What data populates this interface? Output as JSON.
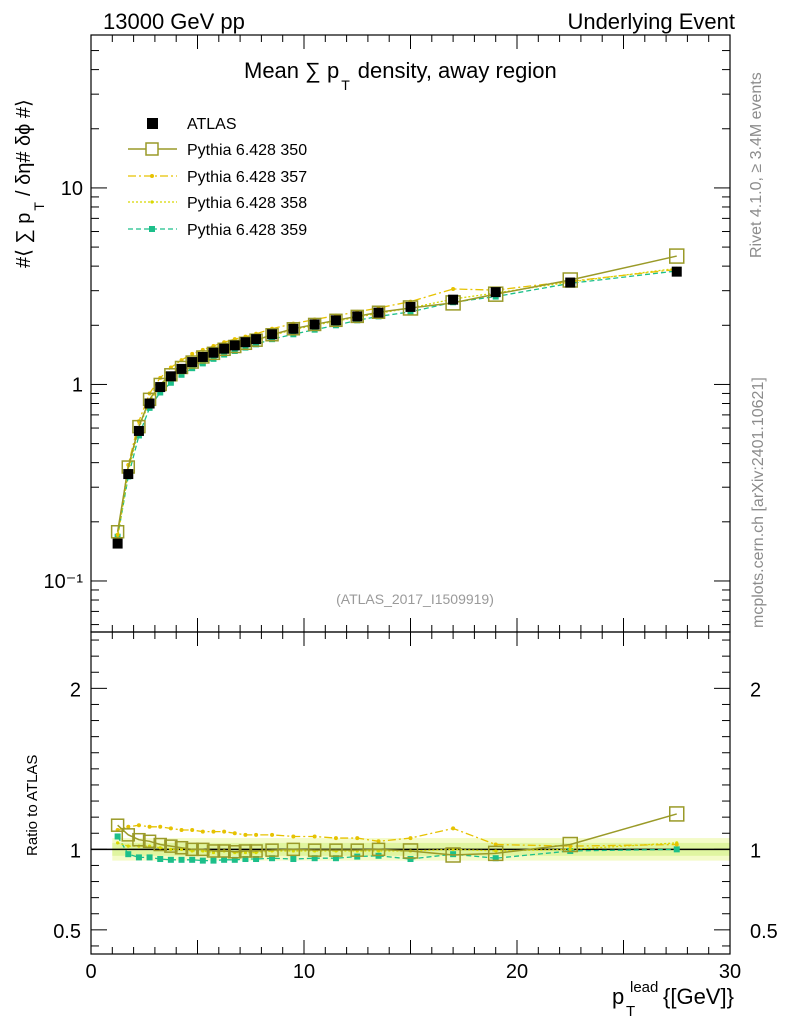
{
  "header": {
    "left": "13000 GeV pp",
    "right": "Underlying Event"
  },
  "side_labels": {
    "rivet": "Rivet 4.1.0, ≥ 3.4M events",
    "source": "mcplots.cern.ch [arXiv:2401.10621]"
  },
  "analysis_ref": "(ATLAS_2017_I1509919)",
  "colors": {
    "atlas": "#000000",
    "p350": "#9a9a28",
    "p357": "#e6c200",
    "p358": "#d8d800",
    "p359": "#1cbf8a",
    "band_inner": "#e0f5a0",
    "band_outer": "#f4fbc8"
  },
  "chart_data": [
    {
      "type": "scatter",
      "panel": "main",
      "title": "Mean ∑ p",
      "title_sub": "T",
      "title_rest": "density, away region",
      "ylabel": "#⟨ ∑ p",
      "ylabel_sub": "T",
      "ylabel_rest": "/ δη# δϕ #⟩",
      "yscale": "log",
      "ylim": [
        0.055,
        60
      ],
      "xlim": [
        0,
        30
      ],
      "yticks": [
        0.1,
        1,
        10
      ],
      "ytick_labels": [
        "10⁻¹",
        "1",
        "10"
      ],
      "x": [
        1.25,
        1.75,
        2.25,
        2.75,
        3.25,
        3.75,
        4.25,
        4.75,
        5.25,
        5.75,
        6.25,
        6.75,
        7.25,
        7.75,
        8.5,
        9.5,
        10.5,
        11.5,
        12.5,
        13.5,
        15,
        17,
        19,
        22.5,
        27.5
      ],
      "series": [
        {
          "name": "ATLAS",
          "key": "atlas",
          "style": "data",
          "values": [
            0.155,
            0.35,
            0.58,
            0.8,
            0.97,
            1.1,
            1.2,
            1.3,
            1.38,
            1.45,
            1.52,
            1.58,
            1.64,
            1.7,
            1.8,
            1.92,
            2.02,
            2.12,
            2.22,
            2.32,
            2.48,
            2.7,
            2.95,
            3.3,
            3.75
          ]
        },
        {
          "name": "Pythia 6.428 350",
          "key": "p350",
          "style": "open-square-solid",
          "values": [
            0.178,
            0.38,
            0.61,
            0.84,
            1.0,
            1.12,
            1.22,
            1.3,
            1.38,
            1.44,
            1.51,
            1.56,
            1.62,
            1.68,
            1.79,
            1.92,
            2.02,
            2.12,
            2.22,
            2.33,
            2.45,
            2.6,
            2.88,
            3.4,
            4.5
          ]
        },
        {
          "name": "Pythia 6.428 357",
          "key": "p357",
          "style": "dashdot",
          "values": [
            0.172,
            0.39,
            0.65,
            0.9,
            1.08,
            1.22,
            1.33,
            1.43,
            1.5,
            1.57,
            1.64,
            1.7,
            1.75,
            1.81,
            1.92,
            2.04,
            2.14,
            2.24,
            2.34,
            2.45,
            2.64,
            3.06,
            3.02,
            3.35,
            3.85
          ]
        },
        {
          "name": "Pythia 6.428 358",
          "key": "p358",
          "style": "dotted",
          "values": [
            0.165,
            0.36,
            0.6,
            0.82,
            0.98,
            1.1,
            1.2,
            1.28,
            1.36,
            1.42,
            1.5,
            1.55,
            1.61,
            1.67,
            1.78,
            1.9,
            2.0,
            2.1,
            2.2,
            2.3,
            2.45,
            2.72,
            2.92,
            3.32,
            3.9
          ]
        },
        {
          "name": "Pythia 6.428 359",
          "key": "p359",
          "style": "dashed-filled",
          "values": [
            0.168,
            0.34,
            0.55,
            0.76,
            0.91,
            1.02,
            1.12,
            1.21,
            1.28,
            1.35,
            1.42,
            1.48,
            1.54,
            1.6,
            1.7,
            1.8,
            1.9,
            2.0,
            2.12,
            2.22,
            2.34,
            2.62,
            2.8,
            3.27,
            3.78
          ]
        }
      ],
      "legend": "top-left"
    },
    {
      "type": "scatter",
      "panel": "ratio",
      "ylabel": "Ratio to ATLAS",
      "xlabel": "p",
      "xlabel_sub": "T",
      "xlabel_sup": "lead",
      "xlabel_rest": "{[GeV]}",
      "ylim": [
        0.35,
        2.35
      ],
      "xlim": [
        0,
        30
      ],
      "yticks": [
        0.5,
        1,
        2
      ],
      "ytick_labels": [
        "0.5",
        "1",
        "2"
      ],
      "xticks": [
        0,
        10,
        20,
        30
      ],
      "xtick_labels": [
        "0",
        "10",
        "20",
        "30"
      ],
      "x": [
        1.25,
        1.75,
        2.25,
        2.75,
        3.25,
        3.75,
        4.25,
        4.75,
        5.25,
        5.75,
        6.25,
        6.75,
        7.25,
        7.75,
        8.5,
        9.5,
        10.5,
        11.5,
        12.5,
        13.5,
        15,
        17,
        19,
        22.5,
        27.5
      ],
      "series": [
        {
          "name": "Pythia 6.428 350",
          "key": "p350",
          "style": "open-square-solid",
          "values": [
            1.15,
            1.09,
            1.06,
            1.05,
            1.03,
            1.02,
            1.01,
            1.0,
            1.0,
            0.99,
            0.99,
            0.985,
            0.99,
            0.99,
            0.995,
            1.0,
            0.995,
            0.995,
            0.995,
            1.0,
            0.99,
            0.965,
            0.975,
            1.03,
            1.22
          ]
        },
        {
          "name": "Pythia 6.428 357",
          "key": "p357",
          "style": "dashdot",
          "values": [
            1.12,
            1.14,
            1.15,
            1.14,
            1.14,
            1.13,
            1.12,
            1.12,
            1.11,
            1.11,
            1.11,
            1.1,
            1.09,
            1.09,
            1.09,
            1.08,
            1.08,
            1.07,
            1.07,
            1.05,
            1.07,
            1.13,
            1.03,
            1.02,
            1.03
          ]
        },
        {
          "name": "Pythia 6.428 358",
          "key": "p358",
          "style": "dotted",
          "values": [
            1.04,
            1.02,
            1.02,
            1.02,
            1.01,
            1.0,
            1.0,
            0.99,
            0.99,
            0.98,
            0.99,
            0.98,
            0.98,
            0.98,
            0.99,
            0.99,
            0.99,
            0.99,
            0.99,
            0.99,
            0.99,
            1.0,
            0.99,
            1.0,
            1.04
          ]
        },
        {
          "name": "Pythia 6.428 359",
          "key": "p359",
          "style": "dashed-filled",
          "values": [
            1.08,
            0.97,
            0.95,
            0.95,
            0.94,
            0.935,
            0.935,
            0.935,
            0.93,
            0.93,
            0.935,
            0.935,
            0.94,
            0.94,
            0.945,
            0.94,
            0.945,
            0.945,
            0.955,
            0.96,
            0.94,
            0.97,
            0.945,
            0.99,
            1.0
          ]
        }
      ],
      "band": {
        "inner": 0.04,
        "outer": 0.07
      }
    }
  ]
}
